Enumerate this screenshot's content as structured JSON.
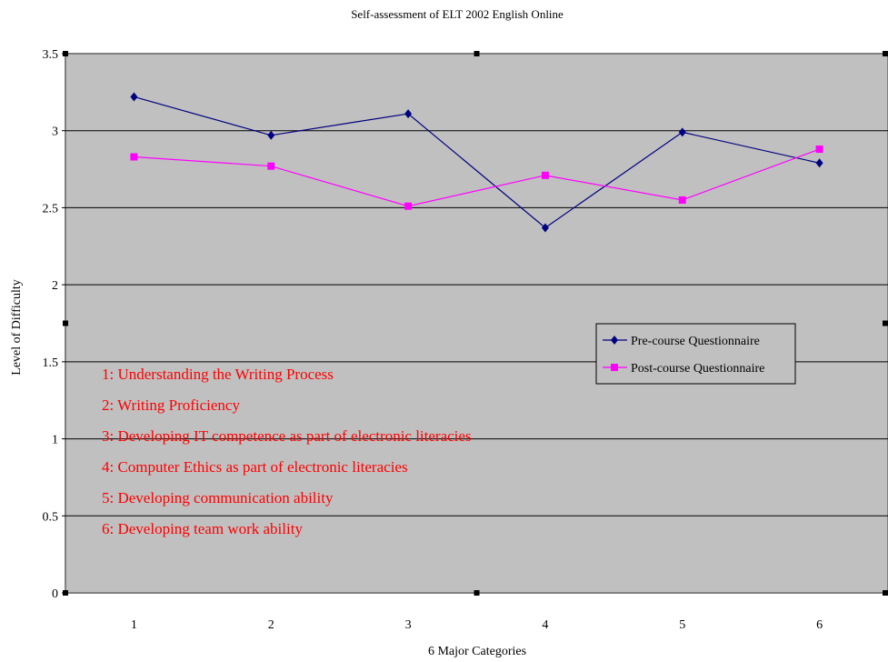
{
  "colors": {
    "plot_background": "#c0c0c0",
    "gridline": "#000000",
    "series_pre": "#000080",
    "series_post": "#ff00ff",
    "annotation": "#ff0000"
  },
  "chart_data": {
    "type": "line",
    "title": "Self-assessment of ELT 2002 English Online",
    "xlabel": "6 Major Categories",
    "ylabel": "Level of Difficulty",
    "categories": [
      "1",
      "2",
      "3",
      "4",
      "5",
      "6"
    ],
    "ylim": [
      0,
      3.5
    ],
    "yticks": [
      "0",
      "0.5",
      "1",
      "1.5",
      "2",
      "2.5",
      "3",
      "3.5"
    ],
    "grid": true,
    "legend_position": "right-middle",
    "series": [
      {
        "name": "Pre-course Questionnaire",
        "marker": "diamond",
        "color_key": "series_pre",
        "values": [
          3.22,
          2.97,
          3.11,
          2.37,
          2.99,
          2.79
        ]
      },
      {
        "name": "Post-course Questionnaire",
        "marker": "square",
        "color_key": "series_post",
        "values": [
          2.83,
          2.77,
          2.51,
          2.71,
          2.55,
          2.88
        ]
      }
    ],
    "annotations": [
      "1: Understanding the Writing Process",
      "2: Writing Proficiency",
      "3: Developing IT competence as part of electronic literacies",
      "4: Computer Ethics as part of electronic literacies",
      "5: Developing communication ability",
      "6: Developing team work ability"
    ]
  }
}
